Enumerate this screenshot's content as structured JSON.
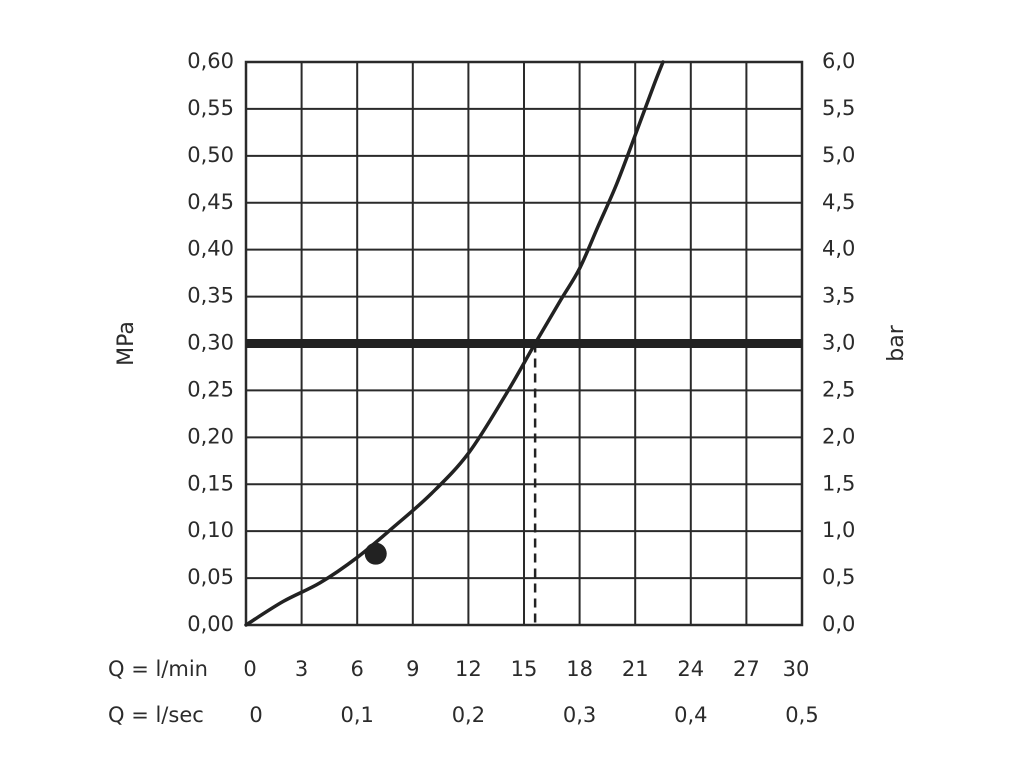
{
  "chart_data": {
    "type": "line",
    "title": "",
    "y_left": {
      "label": "MPa",
      "lim": [
        0,
        0.6
      ],
      "tick_values": [
        0,
        0.05,
        0.1,
        0.15,
        0.2,
        0.25,
        0.3,
        0.35,
        0.4,
        0.45,
        0.5,
        0.55,
        0.6
      ],
      "tick_labels": [
        "0,00",
        "0,05",
        "0,10",
        "0,15",
        "0,20",
        "0,25",
        "0,30",
        "0,35",
        "0,40",
        "0,45",
        "0,50",
        "0,55",
        "0,60"
      ]
    },
    "y_right": {
      "label": "bar",
      "tick_labels": [
        "0,0",
        "0,5",
        "1,0",
        "1,5",
        "2,0",
        "2,5",
        "3,0",
        "3,5",
        "4,0",
        "4,5",
        "5,0",
        "5,5",
        "6,0"
      ]
    },
    "x_primary": {
      "label": "Q = l/min",
      "lim": [
        0,
        30
      ],
      "tick_values": [
        0,
        3,
        6,
        9,
        12,
        15,
        18,
        21,
        24,
        27,
        30
      ],
      "tick_labels": [
        "0",
        "3",
        "6",
        "9",
        "12",
        "15",
        "18",
        "21",
        "24",
        "27",
        "30"
      ]
    },
    "x_secondary": {
      "label": "Q = l/sec",
      "tick_values": [
        0,
        6,
        12,
        18,
        24,
        30
      ],
      "tick_labels": [
        "0",
        "0,1",
        "0,2",
        "0,3",
        "0,4",
        "0,5"
      ]
    },
    "grid": true,
    "series": [
      {
        "name": "",
        "color": "#222222",
        "x": [
          0,
          2,
          4,
          6,
          8,
          10,
          12,
          14,
          15.6,
          17,
          18,
          19,
          20,
          21,
          22,
          22.5
        ],
        "y": [
          0,
          0.025,
          0.045,
          0.072,
          0.105,
          0.14,
          0.183,
          0.245,
          0.3,
          0.347,
          0.38,
          0.425,
          0.47,
          0.522,
          0.575,
          0.6
        ]
      }
    ],
    "marker": {
      "x": 7,
      "y": 0.076,
      "color": "#222222"
    },
    "reference_line": {
      "y": 0.3,
      "color": "#222222"
    },
    "dashed_drop": {
      "x": 15.6,
      "y": 0.3
    }
  }
}
